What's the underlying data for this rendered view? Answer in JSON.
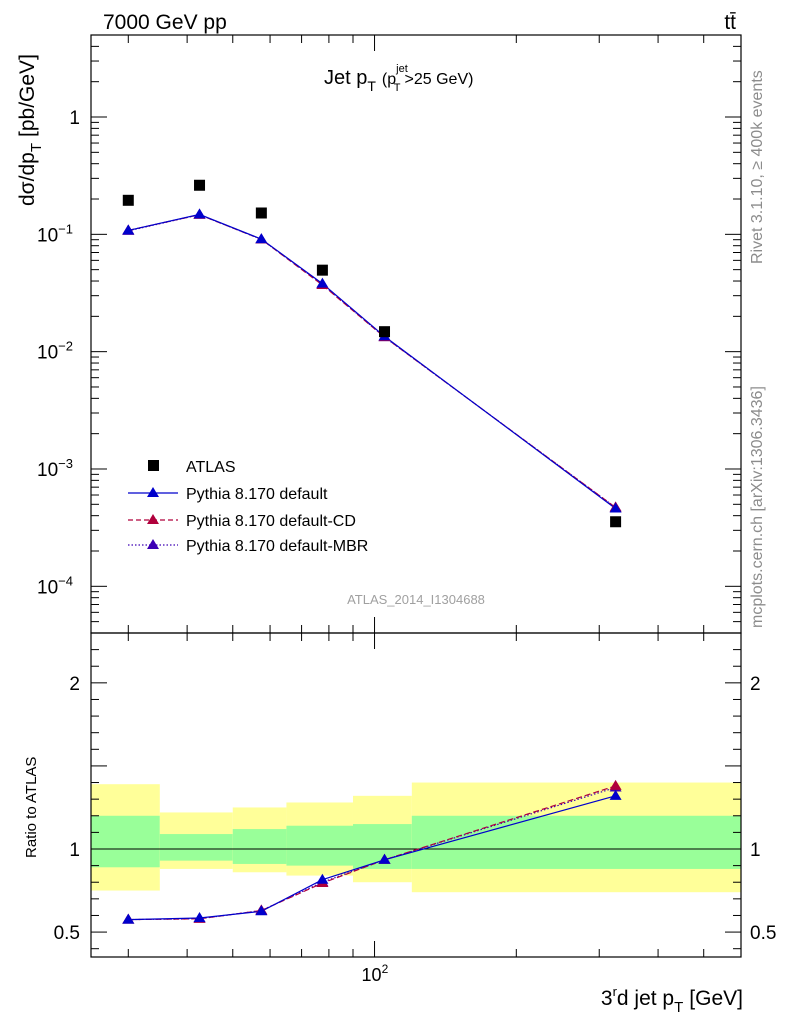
{
  "header": {
    "energy_label": "7000 GeV pp",
    "process_label": "tt̄"
  },
  "side_labels": {
    "rivet": "Rivet 3.1.10, ≥ 400k events",
    "mcplots": "mcplots.cern.ch [arXiv:1306.3436]"
  },
  "watermark": "ATLAS_2014_I1304688",
  "colors": {
    "data": "#000000",
    "default": "#0000cc",
    "default_cd": "#b0003c",
    "default_mbr": "#3c00b4",
    "band_inner": "#99ff99",
    "band_outer": "#ffff99"
  },
  "chart_data": [
    {
      "type": "scatter",
      "panel": "main",
      "title_main": "Jet p",
      "title_sub": "T",
      "title_cond_pre": "(p",
      "title_cond_sup": "jet",
      "title_cond_sub": "T",
      "title_cond_post": ">25 GeV)",
      "ylabel_main": "dσ/dp",
      "ylabel_sub": "T",
      "ylabel_units": "[pb/GeV]",
      "yscale": "log",
      "xscale": "log",
      "xlim": [
        25,
        600
      ],
      "ylim": [
        4e-05,
        5
      ],
      "yticks": [
        {
          "value": 1,
          "label": "1",
          "exp": ""
        },
        {
          "value": 0.1,
          "label": "10",
          "exp": "−1"
        },
        {
          "value": 0.01,
          "label": "10",
          "exp": "−2"
        },
        {
          "value": 0.001,
          "label": "10",
          "exp": "−3"
        },
        {
          "value": 0.0001,
          "label": "10",
          "exp": "−4"
        }
      ],
      "x": [
        30,
        42.5,
        57.5,
        77.5,
        105,
        325
      ],
      "x_err": [
        [
          25,
          35
        ],
        [
          35,
          50
        ],
        [
          50,
          65
        ],
        [
          65,
          90
        ],
        [
          90,
          120
        ],
        [
          120,
          600
        ]
      ],
      "series": [
        {
          "name": "ATLAS",
          "key": "data",
          "values": [
            0.195,
            0.262,
            0.152,
            0.0495,
            0.0148,
            0.000355
          ]
        },
        {
          "name": "Pythia 8.170 default",
          "key": "default",
          "values": [
            0.108,
            0.148,
            0.091,
            0.038,
            0.0135,
            0.00046
          ]
        },
        {
          "name": "Pythia 8.170 default-CD",
          "key": "default_cd",
          "values": [
            0.108,
            0.147,
            0.0905,
            0.037,
            0.0133,
            0.00047
          ]
        },
        {
          "name": "Pythia 8.170 default-MBR",
          "key": "default_mbr",
          "values": [
            0.107,
            0.147,
            0.0905,
            0.0375,
            0.0133,
            0.00047
          ]
        }
      ]
    },
    {
      "type": "line",
      "panel": "ratio",
      "ylabel": "Ratio to ATLAS",
      "xlabel_pre": "3",
      "xlabel_sup": "r",
      "xlabel_mid": "d jet p",
      "xlabel_sub": "T",
      "xlabel_units": "[GeV]",
      "xscale": "log",
      "xlim": [
        25,
        600
      ],
      "ylim": [
        0.35,
        2.3
      ],
      "yticks": [
        0.5,
        1,
        2
      ],
      "ytick_labels": [
        "0.5",
        "1",
        "2"
      ],
      "xticks_major": [
        100
      ],
      "xtick_major_label": "10",
      "xtick_major_exp": "2",
      "reference": 1,
      "band_bins": [
        {
          "x0": 25,
          "x1": 35,
          "inner": [
            0.89,
            1.2
          ],
          "outer": [
            0.75,
            1.39
          ]
        },
        {
          "x0": 35,
          "x1": 50,
          "inner": [
            0.93,
            1.09
          ],
          "outer": [
            0.88,
            1.22
          ]
        },
        {
          "x0": 50,
          "x1": 65,
          "inner": [
            0.91,
            1.12
          ],
          "outer": [
            0.86,
            1.25
          ]
        },
        {
          "x0": 65,
          "x1": 90,
          "inner": [
            0.9,
            1.14
          ],
          "outer": [
            0.84,
            1.28
          ]
        },
        {
          "x0": 90,
          "x1": 120,
          "inner": [
            0.88,
            1.15
          ],
          "outer": [
            0.8,
            1.32
          ]
        },
        {
          "x0": 120,
          "x1": 600,
          "inner": [
            0.88,
            1.2
          ],
          "outer": [
            0.74,
            1.4
          ]
        }
      ],
      "series": [
        {
          "name": "Pythia 8.170 default",
          "key": "default",
          "values": [
            0.575,
            0.585,
            0.625,
            0.815,
            0.935,
            1.32
          ]
        },
        {
          "name": "Pythia 8.170 default-CD",
          "key": "default_cd",
          "values": [
            0.575,
            0.58,
            0.63,
            0.795,
            0.935,
            1.38
          ]
        },
        {
          "name": "Pythia 8.170 default-MBR",
          "key": "default_mbr",
          "values": [
            0.575,
            0.58,
            0.63,
            0.8,
            0.935,
            1.37
          ]
        }
      ]
    }
  ]
}
